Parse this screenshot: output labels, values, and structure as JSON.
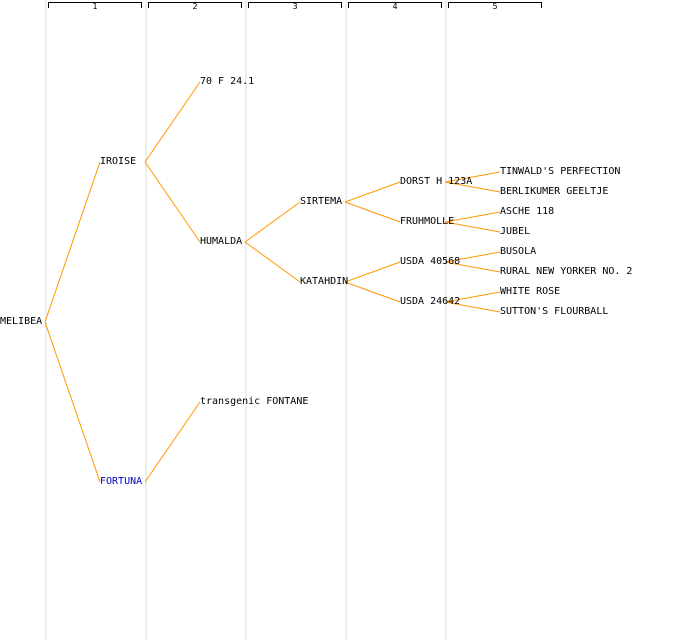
{
  "columns": [
    "1",
    "2",
    "3",
    "4",
    "5"
  ],
  "edge_color": "#ff9900",
  "highlight_color": "#0000cc",
  "nodes": {
    "melibea": "MELIBEA",
    "iroise": "IROISE",
    "fortuna": "FORTUNA",
    "70f": "70 F 24.1",
    "humalda": "HUMALDA",
    "fontane": "transgenic FONTANE",
    "sirtema": "SIRTEMA",
    "katahdin": "KATAHDIN",
    "dorst": "DORST H 123A",
    "fruhmolle": "FRUHMOLLE",
    "usda40568": "USDA 40568",
    "usda24642": "USDA 24642",
    "tinwald": "TINWALD'S PERFECTION",
    "berlikumer": "BERLIKUMER GEELTJE",
    "asche": "ASCHE 118",
    "jubel": "JUBEL",
    "busola": "BUSOLA",
    "rural": "RURAL NEW YORKER NO. 2",
    "whiterose": "WHITE ROSE",
    "sutton": "SUTTON'S FLOURBALL"
  }
}
